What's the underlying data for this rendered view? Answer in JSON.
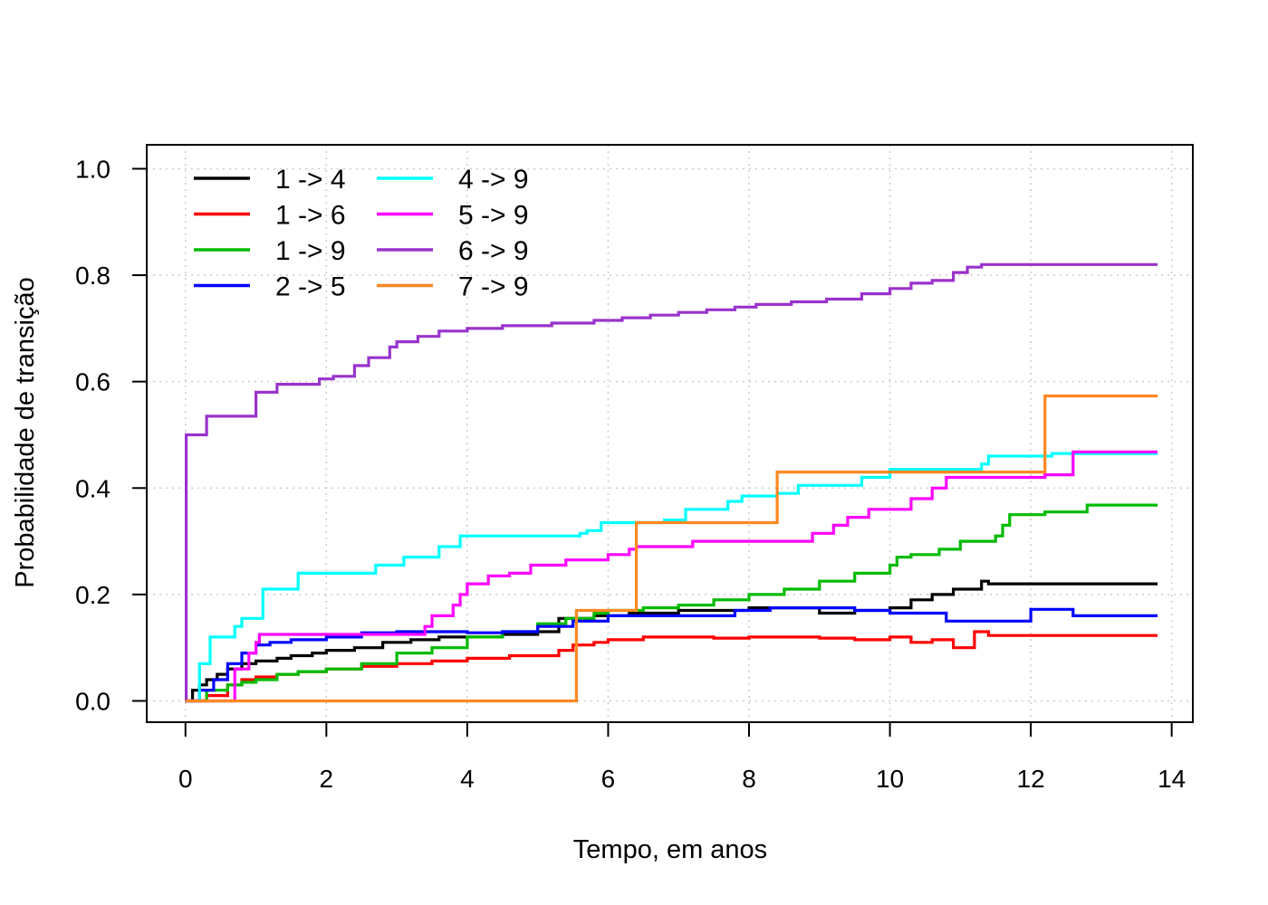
{
  "chart_data": {
    "type": "line",
    "step": true,
    "xlabel": "Tempo, em anos",
    "ylabel": "Probabilidade de transição",
    "xlim": [
      -0.55,
      14.3
    ],
    "ylim": [
      -0.04,
      1.045
    ],
    "xticks": [
      "0",
      "2",
      "4",
      "6",
      "8",
      "10",
      "12",
      "14"
    ],
    "yticks": [
      "0.0",
      "0.2",
      "0.4",
      "0.6",
      "0.8",
      "1.0"
    ],
    "grid": true,
    "legend_position": "top-left",
    "series": [
      {
        "name": "1 -> 4",
        "color": "#000000",
        "points": [
          [
            0,
            0
          ],
          [
            0.1,
            0.02
          ],
          [
            0.2,
            0.03
          ],
          [
            0.3,
            0.04
          ],
          [
            0.45,
            0.05
          ],
          [
            0.6,
            0.06
          ],
          [
            0.8,
            0.07
          ],
          [
            1.0,
            0.075
          ],
          [
            1.3,
            0.08
          ],
          [
            1.5,
            0.085
          ],
          [
            1.8,
            0.09
          ],
          [
            2.0,
            0.095
          ],
          [
            2.4,
            0.1
          ],
          [
            2.8,
            0.11
          ],
          [
            3.2,
            0.115
          ],
          [
            3.6,
            0.12
          ],
          [
            4.0,
            0.12
          ],
          [
            4.5,
            0.125
          ],
          [
            5.0,
            0.13
          ],
          [
            5.3,
            0.155
          ],
          [
            5.8,
            0.16
          ],
          [
            6.3,
            0.165
          ],
          [
            7.0,
            0.17
          ],
          [
            7.6,
            0.17
          ],
          [
            8.0,
            0.175
          ],
          [
            8.5,
            0.175
          ],
          [
            9.0,
            0.165
          ],
          [
            9.5,
            0.17
          ],
          [
            10.0,
            0.175
          ],
          [
            10.3,
            0.19
          ],
          [
            10.6,
            0.2
          ],
          [
            10.9,
            0.21
          ],
          [
            11.3,
            0.225
          ],
          [
            11.4,
            0.22
          ],
          [
            13.8,
            0.22
          ]
        ]
      },
      {
        "name": "1 -> 6",
        "color": "#ff0000",
        "points": [
          [
            0,
            0
          ],
          [
            0.3,
            0.01
          ],
          [
            0.6,
            0.03
          ],
          [
            0.8,
            0.04
          ],
          [
            1.0,
            0.045
          ],
          [
            1.3,
            0.05
          ],
          [
            1.6,
            0.055
          ],
          [
            2.0,
            0.06
          ],
          [
            2.5,
            0.065
          ],
          [
            3.0,
            0.07
          ],
          [
            3.5,
            0.075
          ],
          [
            4.0,
            0.08
          ],
          [
            4.6,
            0.085
          ],
          [
            5.3,
            0.095
          ],
          [
            5.5,
            0.105
          ],
          [
            5.8,
            0.11
          ],
          [
            6.0,
            0.115
          ],
          [
            6.5,
            0.12
          ],
          [
            7.5,
            0.118
          ],
          [
            8.0,
            0.12
          ],
          [
            9.0,
            0.118
          ],
          [
            9.5,
            0.115
          ],
          [
            10.0,
            0.12
          ],
          [
            10.3,
            0.11
          ],
          [
            10.6,
            0.115
          ],
          [
            10.9,
            0.1
          ],
          [
            11.2,
            0.13
          ],
          [
            11.4,
            0.123
          ],
          [
            13.8,
            0.123
          ]
        ]
      },
      {
        "name": "1 -> 9",
        "color": "#00bb00",
        "points": [
          [
            0,
            0
          ],
          [
            0.3,
            0.02
          ],
          [
            0.6,
            0.03
          ],
          [
            0.8,
            0.035
          ],
          [
            1.0,
            0.04
          ],
          [
            1.3,
            0.05
          ],
          [
            1.6,
            0.055
          ],
          [
            2.0,
            0.06
          ],
          [
            2.5,
            0.07
          ],
          [
            3.0,
            0.09
          ],
          [
            3.5,
            0.1
          ],
          [
            4.0,
            0.12
          ],
          [
            4.5,
            0.13
          ],
          [
            5.0,
            0.145
          ],
          [
            5.4,
            0.155
          ],
          [
            5.8,
            0.165
          ],
          [
            6.0,
            0.17
          ],
          [
            6.5,
            0.175
          ],
          [
            7.0,
            0.18
          ],
          [
            7.5,
            0.19
          ],
          [
            8.0,
            0.2
          ],
          [
            8.5,
            0.21
          ],
          [
            9.0,
            0.225
          ],
          [
            9.5,
            0.24
          ],
          [
            10.0,
            0.255
          ],
          [
            10.1,
            0.27
          ],
          [
            10.3,
            0.275
          ],
          [
            10.7,
            0.285
          ],
          [
            11.0,
            0.3
          ],
          [
            11.5,
            0.31
          ],
          [
            11.6,
            0.33
          ],
          [
            11.7,
            0.35
          ],
          [
            12.2,
            0.355
          ],
          [
            12.8,
            0.368
          ],
          [
            13.8,
            0.368
          ]
        ]
      },
      {
        "name": "2 -> 5",
        "color": "#0000ff",
        "points": [
          [
            0,
            0
          ],
          [
            0.2,
            0.02
          ],
          [
            0.4,
            0.04
          ],
          [
            0.6,
            0.07
          ],
          [
            0.8,
            0.09
          ],
          [
            1.0,
            0.105
          ],
          [
            1.2,
            0.11
          ],
          [
            1.5,
            0.115
          ],
          [
            2.0,
            0.12
          ],
          [
            2.5,
            0.128
          ],
          [
            3.0,
            0.13
          ],
          [
            3.5,
            0.13
          ],
          [
            4.0,
            0.128
          ],
          [
            4.5,
            0.13
          ],
          [
            5.0,
            0.14
          ],
          [
            5.5,
            0.15
          ],
          [
            6.0,
            0.16
          ],
          [
            7.0,
            0.16
          ],
          [
            7.8,
            0.17
          ],
          [
            8.3,
            0.175
          ],
          [
            9.0,
            0.175
          ],
          [
            9.5,
            0.17
          ],
          [
            10.0,
            0.165
          ],
          [
            10.8,
            0.15
          ],
          [
            11.5,
            0.15
          ],
          [
            12.0,
            0.172
          ],
          [
            12.6,
            0.16
          ],
          [
            13.8,
            0.16
          ]
        ]
      },
      {
        "name": "4 -> 9",
        "color": "#00ffff",
        "points": [
          [
            0,
            0
          ],
          [
            0.2,
            0.07
          ],
          [
            0.35,
            0.12
          ],
          [
            0.7,
            0.14
          ],
          [
            0.8,
            0.155
          ],
          [
            1.1,
            0.21
          ],
          [
            1.6,
            0.24
          ],
          [
            2.7,
            0.255
          ],
          [
            3.1,
            0.27
          ],
          [
            3.6,
            0.29
          ],
          [
            3.9,
            0.31
          ],
          [
            5.6,
            0.315
          ],
          [
            5.7,
            0.32
          ],
          [
            5.9,
            0.335
          ],
          [
            6.8,
            0.34
          ],
          [
            7.1,
            0.36
          ],
          [
            7.7,
            0.375
          ],
          [
            7.9,
            0.385
          ],
          [
            8.4,
            0.39
          ],
          [
            8.7,
            0.405
          ],
          [
            9.6,
            0.42
          ],
          [
            10.0,
            0.435
          ],
          [
            11.3,
            0.445
          ],
          [
            11.4,
            0.46
          ],
          [
            12.3,
            0.465
          ],
          [
            13.8,
            0.465
          ]
        ]
      },
      {
        "name": "5 -> 9",
        "color": "#ff00ff",
        "points": [
          [
            0,
            0
          ],
          [
            0.7,
            0.06
          ],
          [
            0.9,
            0.09
          ],
          [
            1.0,
            0.11
          ],
          [
            1.05,
            0.125
          ],
          [
            3.4,
            0.14
          ],
          [
            3.5,
            0.16
          ],
          [
            3.8,
            0.18
          ],
          [
            3.9,
            0.2
          ],
          [
            4.0,
            0.22
          ],
          [
            4.3,
            0.235
          ],
          [
            4.6,
            0.24
          ],
          [
            4.9,
            0.255
          ],
          [
            5.4,
            0.265
          ],
          [
            6.0,
            0.275
          ],
          [
            6.3,
            0.285
          ],
          [
            6.4,
            0.29
          ],
          [
            7.2,
            0.3
          ],
          [
            8.0,
            0.3
          ],
          [
            8.9,
            0.315
          ],
          [
            9.2,
            0.33
          ],
          [
            9.4,
            0.345
          ],
          [
            9.7,
            0.36
          ],
          [
            10.3,
            0.38
          ],
          [
            10.6,
            0.4
          ],
          [
            10.8,
            0.42
          ],
          [
            12.2,
            0.425
          ],
          [
            12.6,
            0.468
          ],
          [
            13.8,
            0.468
          ]
        ]
      },
      {
        "name": "6 -> 9",
        "color": "#9933cc",
        "points": [
          [
            0,
            0
          ],
          [
            0.01,
            0.5
          ],
          [
            0.3,
            0.535
          ],
          [
            1.0,
            0.58
          ],
          [
            1.3,
            0.595
          ],
          [
            1.9,
            0.605
          ],
          [
            2.1,
            0.61
          ],
          [
            2.4,
            0.63
          ],
          [
            2.6,
            0.645
          ],
          [
            2.9,
            0.665
          ],
          [
            3.0,
            0.675
          ],
          [
            3.3,
            0.685
          ],
          [
            3.6,
            0.695
          ],
          [
            4.0,
            0.7
          ],
          [
            4.5,
            0.705
          ],
          [
            5.2,
            0.71
          ],
          [
            5.8,
            0.715
          ],
          [
            6.2,
            0.72
          ],
          [
            6.6,
            0.725
          ],
          [
            7.0,
            0.73
          ],
          [
            7.4,
            0.735
          ],
          [
            7.8,
            0.74
          ],
          [
            8.1,
            0.745
          ],
          [
            8.6,
            0.75
          ],
          [
            9.1,
            0.755
          ],
          [
            9.6,
            0.765
          ],
          [
            10.0,
            0.775
          ],
          [
            10.3,
            0.785
          ],
          [
            10.6,
            0.79
          ],
          [
            10.9,
            0.805
          ],
          [
            11.1,
            0.815
          ],
          [
            11.3,
            0.82
          ],
          [
            13.8,
            0.82
          ]
        ]
      },
      {
        "name": "7 -> 9",
        "color": "#ff8822",
        "points": [
          [
            0,
            0
          ],
          [
            5.55,
            0.17
          ],
          [
            6.4,
            0.335
          ],
          [
            8.4,
            0.43
          ],
          [
            12.2,
            0.573
          ],
          [
            13.8,
            0.573
          ]
        ]
      }
    ]
  }
}
